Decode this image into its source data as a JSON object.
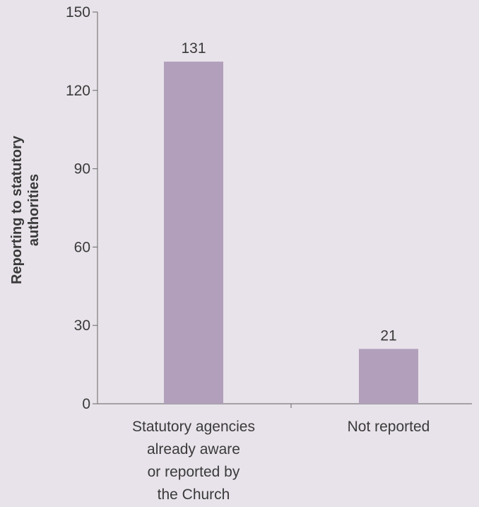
{
  "chart_data": {
    "type": "bar",
    "title": "",
    "xlabel": "",
    "ylabel_lines": [
      "Reporting to statutory",
      "authorities"
    ],
    "categories": [
      [
        "Statutory agencies",
        "already aware",
        "or reported by",
        "the Church"
      ],
      [
        "Not reported"
      ]
    ],
    "values": [
      131,
      21
    ],
    "data_labels": [
      "131",
      "21"
    ],
    "yticks": [
      0,
      30,
      60,
      90,
      120,
      150
    ],
    "ylim": [
      0,
      150
    ],
    "grid": false,
    "legend": "none",
    "colors": {
      "bar": "#b19fbb",
      "background": "#e8e3ea",
      "axis": "#7a7a7a",
      "text": "#3a3a3a"
    }
  }
}
